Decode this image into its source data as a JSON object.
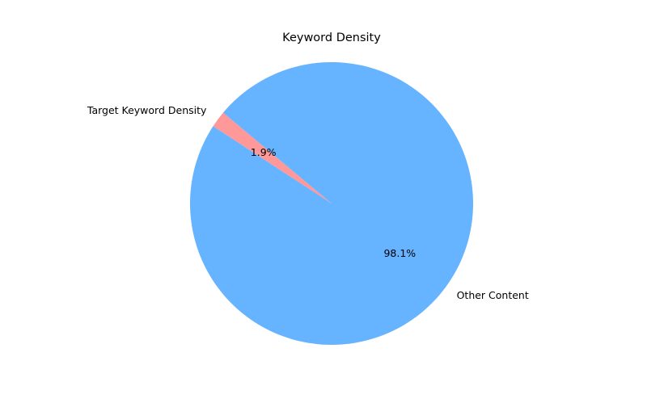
{
  "chart_data": {
    "type": "pie",
    "title": "Keyword Density",
    "labels": [
      "Target Keyword Density",
      "Other Content"
    ],
    "values": [
      1.9,
      98.1
    ],
    "percent_labels": [
      "1.9%",
      "98.1%"
    ],
    "colors": [
      "#ff9999",
      "#66b3ff"
    ],
    "legend": "none",
    "grid": false
  }
}
